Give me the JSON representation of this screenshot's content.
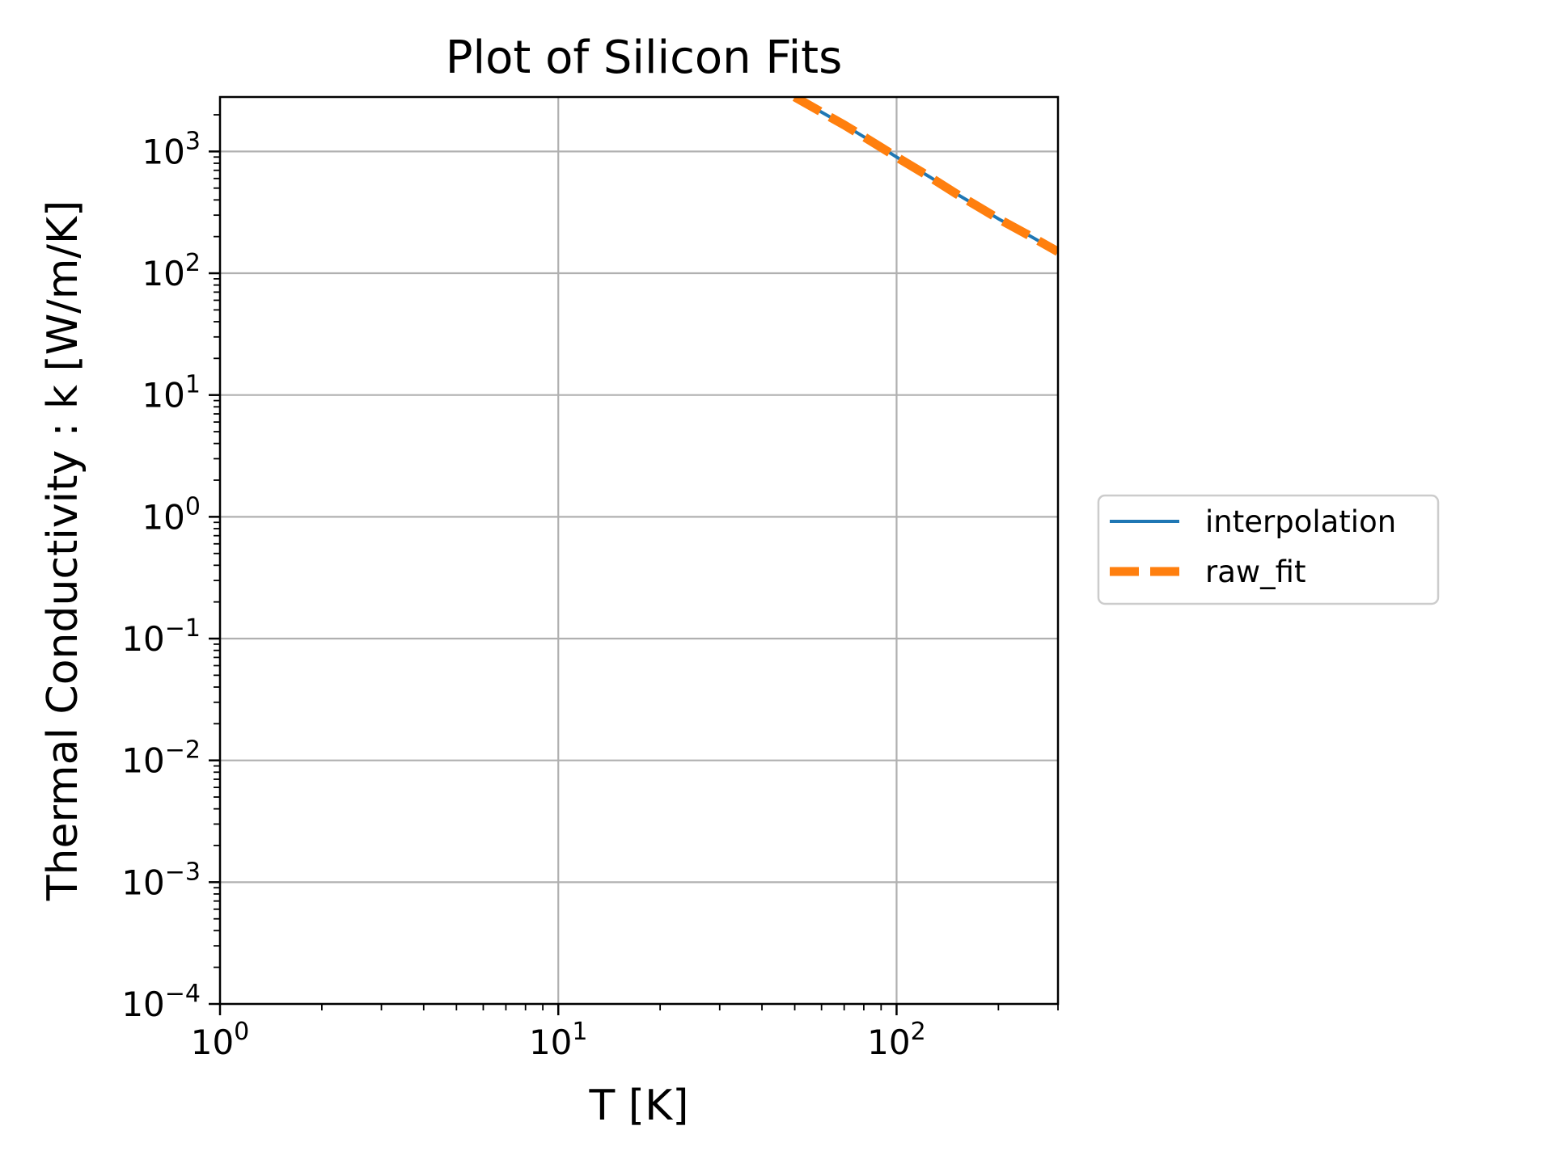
{
  "chart_data": {
    "type": "line",
    "title": "Plot of Silicon Fits",
    "xlabel": "T [K]",
    "ylabel": "Thermal Conductivity : k [W/m/K]",
    "xscale": "log",
    "yscale": "log",
    "xlim": [
      1,
      300
    ],
    "ylim": [
      0.0001,
      2800
    ],
    "grid": true,
    "legend_position": "outside-right",
    "x_ticks": [
      {
        "value": 1,
        "base": "10",
        "exp": "0"
      },
      {
        "value": 10,
        "base": "10",
        "exp": "1"
      },
      {
        "value": 100,
        "base": "10",
        "exp": "2"
      }
    ],
    "y_ticks": [
      {
        "value": 0.0001,
        "base": "10",
        "exp": "−4"
      },
      {
        "value": 0.001,
        "base": "10",
        "exp": "−3"
      },
      {
        "value": 0.01,
        "base": "10",
        "exp": "−2"
      },
      {
        "value": 0.1,
        "base": "10",
        "exp": "−1"
      },
      {
        "value": 1,
        "base": "10",
        "exp": "0"
      },
      {
        "value": 10,
        "base": "10",
        "exp": "1"
      },
      {
        "value": 100,
        "base": "10",
        "exp": "2"
      },
      {
        "value": 1000,
        "base": "10",
        "exp": "3"
      }
    ],
    "series": [
      {
        "name": "interpolation",
        "color": "#1f77b4",
        "style": "solid",
        "x": [
          50,
          60,
          70,
          80,
          90,
          100,
          125,
          150,
          175,
          200,
          250,
          300
        ],
        "y": [
          2800,
          2100,
          1650,
          1320,
          1080,
          900,
          620,
          450,
          350,
          280,
          200,
          150
        ]
      },
      {
        "name": "raw_fit",
        "color": "#ff7f0e",
        "style": "dashed",
        "x": [
          50,
          60,
          70,
          80,
          90,
          100,
          125,
          150,
          175,
          200,
          250,
          300
        ],
        "y": [
          2800,
          2100,
          1650,
          1320,
          1080,
          900,
          620,
          450,
          350,
          280,
          200,
          150
        ]
      }
    ]
  }
}
